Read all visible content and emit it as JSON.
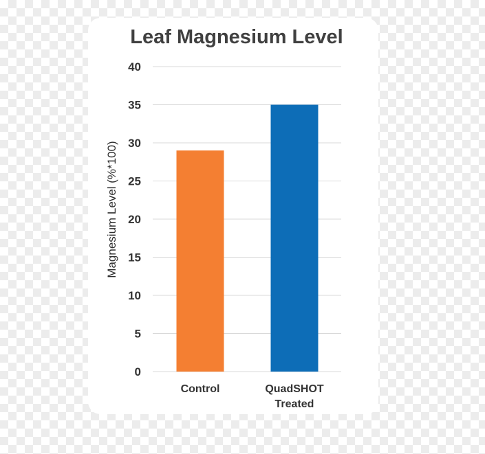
{
  "chart_data": {
    "type": "bar",
    "title": "Leaf Magnesium Level",
    "ylabel": "Magnesium Level (%*100)",
    "xlabel": "",
    "categories": [
      "Control",
      "QuadSHOT Treated"
    ],
    "category_lines": [
      [
        "Control"
      ],
      [
        "QuadSHOT",
        "Treated"
      ]
    ],
    "values": [
      29,
      35
    ],
    "colors": [
      "#f47f32",
      "#0d6db7"
    ],
    "ylim": [
      0,
      40
    ],
    "yticks": [
      0,
      5,
      10,
      15,
      20,
      25,
      30,
      35,
      40
    ],
    "grid": true,
    "legend": "none"
  }
}
